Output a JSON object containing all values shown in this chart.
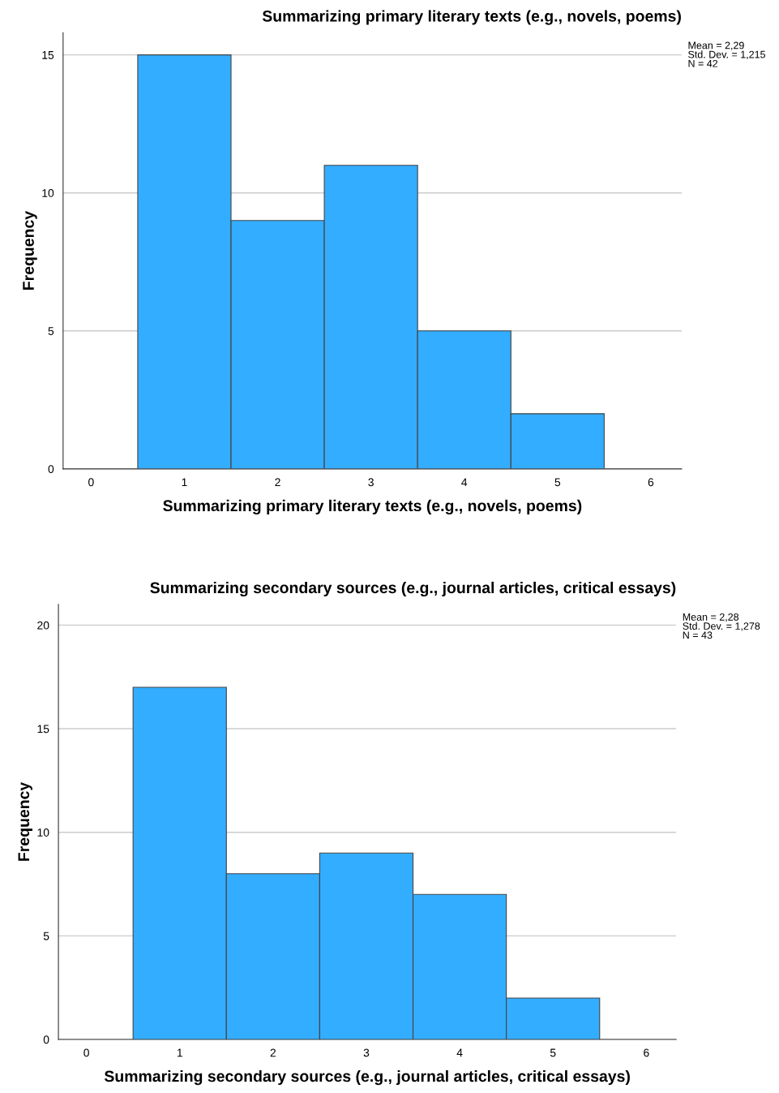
{
  "chart_data": [
    {
      "type": "histogram",
      "title": "Summarizing primary literary texts (e.g., novels, poems)",
      "xlabel": "Summarizing primary literary texts (e.g., novels, poems)",
      "ylabel": "Frequency",
      "bins": [
        0.5,
        1.5,
        2.5,
        3.5,
        4.5,
        5.5
      ],
      "values": [
        15,
        9,
        11,
        5,
        2
      ],
      "color": "#33adff",
      "xlim": [
        -0.3,
        6.33
      ],
      "xticks": [
        0,
        1,
        2,
        3,
        4,
        5,
        6
      ],
      "ylim": [
        0,
        15.8
      ],
      "yticks": [
        0,
        5,
        10,
        15
      ],
      "grid": "y",
      "annotations": [
        "Mean = 2,29\nStd. Dev. = 1,215\nN = 42"
      ]
    },
    {
      "type": "histogram",
      "title": "Summarizing secondary sources (e.g., journal articles, critical essays)",
      "xlabel": "Summarizing secondary sources (e.g., journal articles, critical essays)",
      "ylabel": "Frequency",
      "bins": [
        0.5,
        1.5,
        2.5,
        3.5,
        4.5,
        5.5
      ],
      "values": [
        17,
        8,
        9,
        7,
        2
      ],
      "color": "#33adff",
      "xlim": [
        -0.3,
        6.32
      ],
      "xticks": [
        0,
        1,
        2,
        3,
        4,
        5,
        6
      ],
      "ylim": [
        0,
        21
      ],
      "yticks": [
        0,
        5,
        10,
        15,
        20
      ],
      "grid": "y",
      "annotations": [
        "Mean = 2,28\nStd. Dev. = 1,278\nN = 43"
      ]
    }
  ]
}
